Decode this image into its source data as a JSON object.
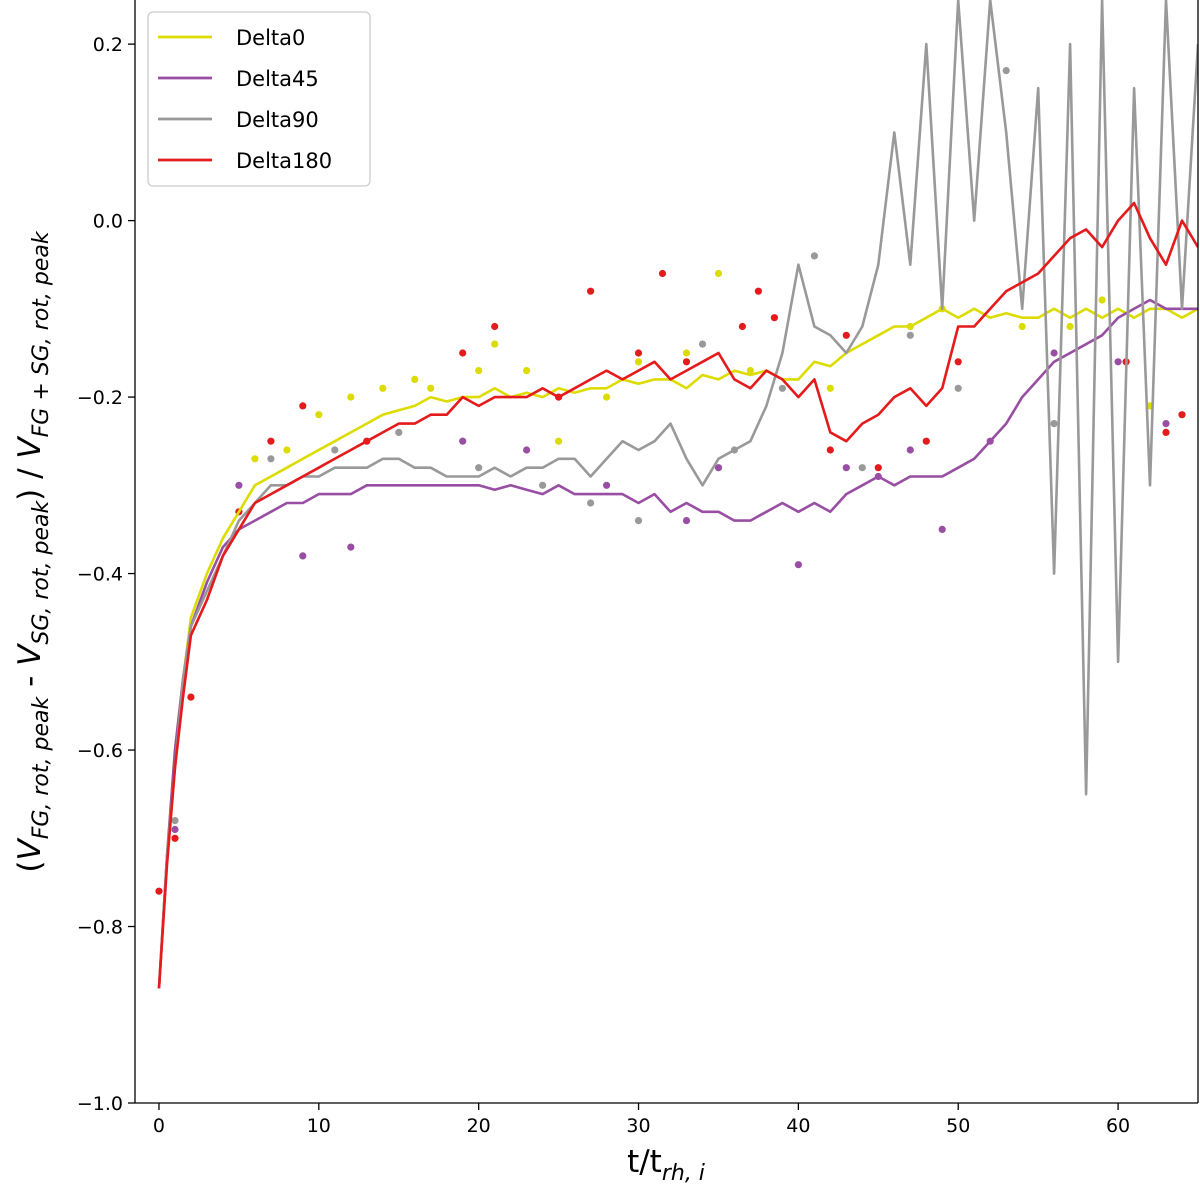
{
  "chart_data": {
    "type": "line",
    "title": "",
    "xlabel": {
      "main": "t/t",
      "sub": "rh, i"
    },
    "ylabel": {
      "open": "(",
      "v1": "V",
      "s1": "FG, rot, peak",
      "mid": " - ",
      "v2": "V",
      "s2": "SG, rot, peak",
      "close": ") / ",
      "v3": "V",
      "s3": "FG + SG, rot, peak"
    },
    "xlim": [
      -1.5,
      65
    ],
    "ylim": [
      -1.0,
      0.25
    ],
    "xticks": [
      "0",
      "10",
      "20",
      "30",
      "40",
      "50",
      "60"
    ],
    "xtick_values": [
      0,
      10,
      20,
      30,
      40,
      50,
      60
    ],
    "yticks": [
      "0.2",
      "0.0",
      "−0.2",
      "−0.4",
      "−0.6",
      "−0.8",
      "−1.0"
    ],
    "ytick_values": [
      0.2,
      0.0,
      -0.2,
      -0.4,
      -0.6,
      -0.8,
      -1.0
    ],
    "grid": false,
    "legend": "top-left",
    "series": [
      {
        "name": "Delta0",
        "color": "#dcdc00",
        "x": [
          0,
          0.5,
          1,
          1.5,
          2,
          3,
          4,
          5,
          6,
          7,
          8,
          9,
          10,
          11,
          12,
          13,
          14,
          15,
          16,
          17,
          18,
          19,
          20,
          21,
          22,
          23,
          24,
          25,
          26,
          27,
          28,
          29,
          30,
          31,
          32,
          33,
          34,
          35,
          36,
          37,
          38,
          39,
          40,
          41,
          42,
          43,
          44,
          45,
          46,
          47,
          48,
          49,
          50,
          51,
          52,
          53,
          54,
          55,
          56,
          57,
          58,
          59,
          60,
          61,
          62,
          63,
          64,
          65
        ],
        "y": [
          -0.87,
          -0.72,
          -0.6,
          -0.52,
          -0.45,
          -0.4,
          -0.36,
          -0.33,
          -0.3,
          -0.29,
          -0.28,
          -0.27,
          -0.26,
          -0.25,
          -0.24,
          -0.23,
          -0.22,
          -0.215,
          -0.21,
          -0.2,
          -0.205,
          -0.2,
          -0.2,
          -0.19,
          -0.2,
          -0.195,
          -0.2,
          -0.19,
          -0.195,
          -0.19,
          -0.19,
          -0.18,
          -0.185,
          -0.18,
          -0.18,
          -0.19,
          -0.175,
          -0.18,
          -0.17,
          -0.175,
          -0.17,
          -0.18,
          -0.18,
          -0.16,
          -0.165,
          -0.15,
          -0.14,
          -0.13,
          -0.12,
          -0.12,
          -0.11,
          -0.1,
          -0.11,
          -0.1,
          -0.11,
          -0.105,
          -0.11,
          -0.11,
          -0.1,
          -0.11,
          -0.1,
          -0.11,
          -0.1,
          -0.11,
          -0.1,
          -0.1,
          -0.11,
          -0.1
        ]
      },
      {
        "name": "Delta45",
        "color": "#984ea3",
        "x": [
          0,
          0.5,
          1,
          1.5,
          2,
          3,
          4,
          5,
          6,
          7,
          8,
          9,
          10,
          11,
          12,
          13,
          14,
          15,
          16,
          17,
          18,
          19,
          20,
          21,
          22,
          23,
          24,
          25,
          26,
          27,
          28,
          29,
          30,
          31,
          32,
          33,
          34,
          35,
          36,
          37,
          38,
          39,
          40,
          41,
          42,
          43,
          44,
          45,
          46,
          47,
          48,
          49,
          50,
          51,
          52,
          53,
          54,
          55,
          56,
          57,
          58,
          59,
          60,
          61,
          62,
          63,
          64,
          65
        ],
        "y": [
          -0.87,
          -0.72,
          -0.6,
          -0.52,
          -0.46,
          -0.41,
          -0.37,
          -0.35,
          -0.34,
          -0.33,
          -0.32,
          -0.32,
          -0.31,
          -0.31,
          -0.31,
          -0.3,
          -0.3,
          -0.3,
          -0.3,
          -0.3,
          -0.3,
          -0.3,
          -0.3,
          -0.305,
          -0.3,
          -0.305,
          -0.31,
          -0.3,
          -0.31,
          -0.31,
          -0.31,
          -0.31,
          -0.32,
          -0.31,
          -0.33,
          -0.32,
          -0.33,
          -0.33,
          -0.34,
          -0.34,
          -0.33,
          -0.32,
          -0.33,
          -0.32,
          -0.33,
          -0.31,
          -0.3,
          -0.29,
          -0.3,
          -0.29,
          -0.29,
          -0.29,
          -0.28,
          -0.27,
          -0.25,
          -0.23,
          -0.2,
          -0.18,
          -0.16,
          -0.15,
          -0.14,
          -0.13,
          -0.11,
          -0.1,
          -0.09,
          -0.1,
          -0.1,
          -0.1
        ]
      },
      {
        "name": "Delta90",
        "color": "#999999",
        "x": [
          0,
          0.5,
          1,
          1.5,
          2,
          3,
          4,
          5,
          6,
          7,
          8,
          9,
          10,
          11,
          12,
          13,
          14,
          15,
          16,
          17,
          18,
          19,
          20,
          21,
          22,
          23,
          24,
          25,
          26,
          27,
          28,
          29,
          30,
          31,
          32,
          33,
          34,
          35,
          36,
          37,
          38,
          39,
          40,
          41,
          42,
          43,
          44,
          45,
          46,
          47,
          48,
          49,
          50,
          51,
          52,
          53,
          54,
          55,
          56,
          57,
          58,
          59,
          60,
          61,
          62,
          63,
          64,
          65
        ],
        "y": [
          -0.87,
          -0.72,
          -0.62,
          -0.52,
          -0.46,
          -0.42,
          -0.38,
          -0.34,
          -0.32,
          -0.3,
          -0.3,
          -0.29,
          -0.29,
          -0.28,
          -0.28,
          -0.28,
          -0.27,
          -0.27,
          -0.28,
          -0.28,
          -0.29,
          -0.29,
          -0.29,
          -0.28,
          -0.29,
          -0.28,
          -0.28,
          -0.27,
          -0.27,
          -0.29,
          -0.27,
          -0.25,
          -0.26,
          -0.25,
          -0.23,
          -0.27,
          -0.3,
          -0.27,
          -0.26,
          -0.25,
          -0.21,
          -0.15,
          -0.05,
          -0.12,
          -0.13,
          -0.15,
          -0.12,
          -0.05,
          0.1,
          -0.05,
          0.2,
          -0.1,
          0.25,
          0.0,
          0.25,
          0.1,
          -0.1,
          0.15,
          -0.4,
          0.2,
          -0.65,
          0.25,
          -0.5,
          0.15,
          -0.3,
          0.25,
          -0.1,
          0.2
        ]
      },
      {
        "name": "Delta180",
        "color": "#e41a1c",
        "x": [
          0,
          0.5,
          1,
          1.5,
          2,
          3,
          4,
          5,
          6,
          7,
          8,
          9,
          10,
          11,
          12,
          13,
          14,
          15,
          16,
          17,
          18,
          19,
          20,
          21,
          22,
          23,
          24,
          25,
          26,
          27,
          28,
          29,
          30,
          31,
          32,
          33,
          34,
          35,
          36,
          37,
          38,
          39,
          40,
          41,
          42,
          43,
          44,
          45,
          46,
          47,
          48,
          49,
          50,
          51,
          52,
          53,
          54,
          55,
          56,
          57,
          58,
          59,
          60,
          61,
          62,
          63,
          64,
          65
        ],
        "y": [
          -0.87,
          -0.73,
          -0.62,
          -0.54,
          -0.47,
          -0.43,
          -0.38,
          -0.35,
          -0.32,
          -0.31,
          -0.3,
          -0.29,
          -0.28,
          -0.27,
          -0.26,
          -0.25,
          -0.24,
          -0.23,
          -0.23,
          -0.22,
          -0.22,
          -0.2,
          -0.21,
          -0.2,
          -0.2,
          -0.2,
          -0.19,
          -0.2,
          -0.19,
          -0.18,
          -0.17,
          -0.18,
          -0.17,
          -0.16,
          -0.18,
          -0.17,
          -0.16,
          -0.15,
          -0.18,
          -0.19,
          -0.17,
          -0.18,
          -0.2,
          -0.18,
          -0.24,
          -0.25,
          -0.23,
          -0.22,
          -0.2,
          -0.19,
          -0.21,
          -0.19,
          -0.12,
          -0.12,
          -0.1,
          -0.08,
          -0.07,
          -0.06,
          -0.04,
          -0.02,
          -0.01,
          -0.03,
          0.0,
          0.02,
          -0.02,
          -0.05,
          0.0,
          -0.03
        ]
      }
    ],
    "scatter": [
      {
        "name": "Delta0",
        "color": "#dcdc00",
        "x": [
          1,
          6,
          8,
          10,
          12,
          14,
          16,
          17,
          20,
          21,
          23,
          25,
          28,
          30,
          33,
          35,
          37,
          42,
          47,
          49,
          54,
          57,
          59,
          62
        ],
        "y": [
          -0.7,
          -0.27,
          -0.26,
          -0.22,
          -0.2,
          -0.19,
          -0.18,
          -0.19,
          -0.17,
          -0.14,
          -0.17,
          -0.25,
          -0.2,
          -0.16,
          -0.15,
          -0.06,
          -0.17,
          -0.19,
          -0.12,
          -0.1,
          -0.12,
          -0.12,
          -0.09,
          -0.21
        ]
      },
      {
        "name": "Delta45",
        "color": "#984ea3",
        "x": [
          1,
          5,
          9,
          12,
          19,
          23,
          28,
          33,
          35,
          40,
          43,
          45,
          47,
          49,
          52,
          56,
          60,
          63
        ],
        "y": [
          -0.69,
          -0.3,
          -0.38,
          -0.37,
          -0.25,
          -0.26,
          -0.3,
          -0.34,
          -0.28,
          -0.39,
          -0.28,
          -0.29,
          -0.26,
          -0.35,
          -0.25,
          -0.15,
          -0.16,
          -0.23
        ]
      },
      {
        "name": "Delta90",
        "color": "#999999",
        "x": [
          1,
          7,
          11,
          15,
          20,
          24,
          27,
          30,
          34,
          36,
          39,
          41,
          44,
          47,
          50,
          53,
          56
        ],
        "y": [
          -0.68,
          -0.27,
          -0.26,
          -0.24,
          -0.28,
          -0.3,
          -0.32,
          -0.34,
          -0.14,
          -0.26,
          -0.19,
          -0.04,
          -0.28,
          -0.13,
          -0.19,
          0.17,
          -0.23
        ]
      },
      {
        "name": "Delta180",
        "color": "#e41a1c",
        "x": [
          0,
          1,
          2,
          5,
          7,
          9,
          13,
          19,
          21,
          25,
          27,
          30,
          31.5,
          33,
          36.5,
          37.5,
          38.5,
          42,
          43,
          45,
          48,
          50,
          60.5,
          63,
          64
        ],
        "y": [
          -0.76,
          -0.7,
          -0.54,
          -0.33,
          -0.25,
          -0.21,
          -0.25,
          -0.15,
          -0.12,
          -0.2,
          -0.08,
          -0.15,
          -0.06,
          -0.16,
          -0.12,
          -0.08,
          -0.11,
          -0.26,
          -0.13,
          -0.28,
          -0.25,
          -0.16,
          -0.16,
          -0.24,
          -0.22
        ]
      }
    ]
  }
}
